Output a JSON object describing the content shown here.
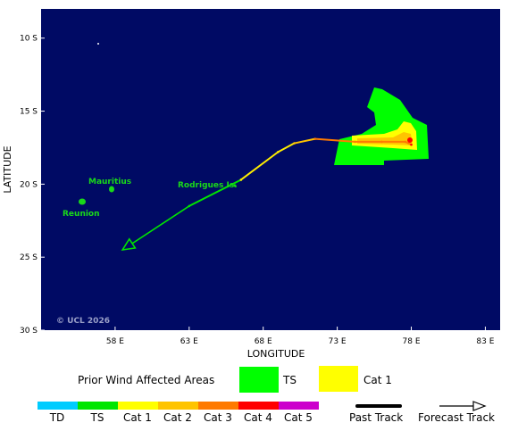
{
  "colors": {
    "ocean": "#000a64",
    "land": "#19d919",
    "ts_area": "#00ff00",
    "cat1_area": "#ffff00",
    "track_ts": "#00e600",
    "track_cat1": "#ffee00",
    "track_cat2": "#ffc400",
    "track_cat3": "#ff7a00",
    "track_cat4": "#ff0000",
    "track_cat5": "#cc00cc",
    "td": "#00ccff"
  },
  "map": {
    "x_axis_title": "LONGITUDE",
    "y_axis_title": "LATITUDE",
    "lon_ticks": [
      {
        "value": 58,
        "label": "58 E"
      },
      {
        "value": 63,
        "label": "63 E"
      },
      {
        "value": 68,
        "label": "68 E"
      },
      {
        "value": 73,
        "label": "73 E"
      },
      {
        "value": 78,
        "label": "78 E"
      },
      {
        "value": 83,
        "label": "83 E"
      }
    ],
    "lat_ticks": [
      {
        "value": -10,
        "label": "10 S"
      },
      {
        "value": -15,
        "label": "15 S"
      },
      {
        "value": -20,
        "label": "20 S"
      },
      {
        "value": -25,
        "label": "25 S"
      },
      {
        "value": -30,
        "label": "30 S"
      }
    ],
    "lon_range": [
      53.0,
      84.0
    ],
    "lat_range": [
      -30.0,
      -8.0
    ],
    "copyright": "© UCL 2026",
    "places": [
      {
        "name": "Mauritius",
        "label": "Mauritius",
        "lon": 57.6,
        "lat": -20.3
      },
      {
        "name": "Reunion",
        "label": "Reunion",
        "lon": 55.5,
        "lat": -21.1
      },
      {
        "name": "Rodrigues",
        "label": "Rodrigues Is.",
        "lon": 63.4,
        "lat": -19.7
      }
    ],
    "past_track": [
      {
        "lon": 78.0,
        "lat": -17.3,
        "cat": "cat4"
      },
      {
        "lon": 77.6,
        "lat": -17.1,
        "cat": "cat3"
      },
      {
        "lon": 76.0,
        "lat": -17.1,
        "cat": "cat3"
      },
      {
        "lon": 74.2,
        "lat": -17.1,
        "cat": "cat3"
      },
      {
        "lon": 71.5,
        "lat": -16.9,
        "cat": "cat3"
      },
      {
        "lon": 70.1,
        "lat": -17.2,
        "cat": "cat2"
      },
      {
        "lon": 69.0,
        "lat": -17.8,
        "cat": "cat1"
      },
      {
        "lon": 66.5,
        "lat": -19.7,
        "cat": "cat1"
      },
      {
        "lon": 63.0,
        "lat": -21.5,
        "cat": "ts"
      }
    ],
    "forecast_track": [
      {
        "lon": 63.0,
        "lat": -21.5
      },
      {
        "lon": 58.5,
        "lat": -24.5
      }
    ]
  },
  "legend": {
    "title": "Prior Wind Affected Areas",
    "items": [
      {
        "label": "TS"
      },
      {
        "label": "Cat 1"
      }
    ]
  },
  "scale": {
    "items": [
      {
        "label": "TD"
      },
      {
        "label": "TS"
      },
      {
        "label": "Cat 1"
      },
      {
        "label": "Cat 2"
      },
      {
        "label": "Cat 3"
      },
      {
        "label": "Cat 4"
      },
      {
        "label": "Cat 5"
      }
    ],
    "past_track_label": "Past Track",
    "forecast_track_label": "Forecast Track"
  }
}
